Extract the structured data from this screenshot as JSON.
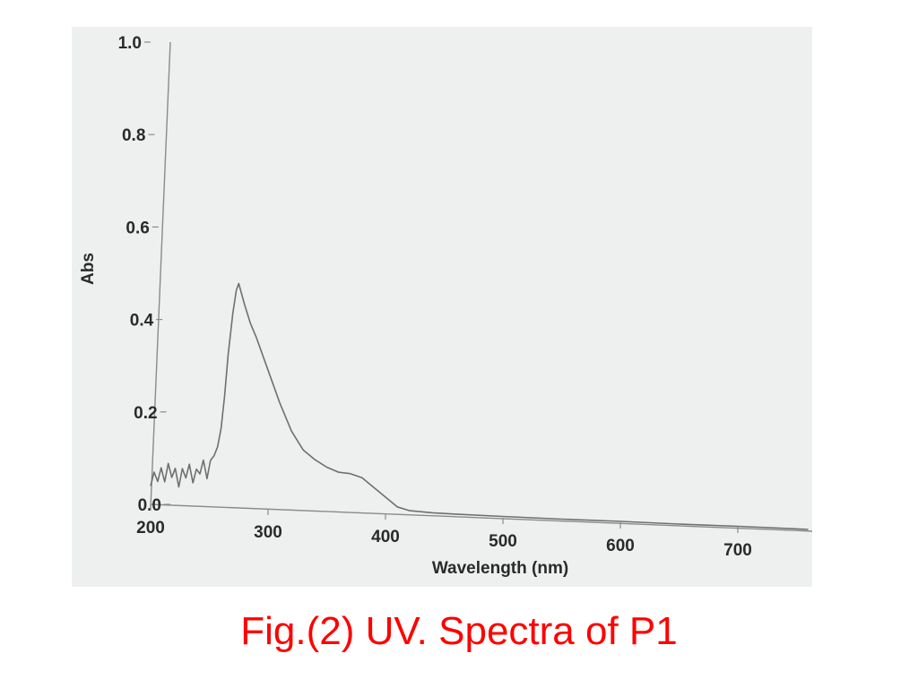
{
  "caption": "Fig.(2) UV. Spectra of P1",
  "colors": {
    "caption": "#ff0000",
    "panel_background": "#eef0ef",
    "trace": "#6f6f6f",
    "axis": "#8a8a8a",
    "text": "#2a2a2a"
  },
  "chart_data": {
    "type": "line",
    "title": "",
    "xlabel": "Wavelength (nm)",
    "ylabel": "Abs",
    "xlim": [
      200,
      760
    ],
    "ylim": [
      0.0,
      1.0
    ],
    "x_ticks": [
      200,
      300,
      400,
      500,
      600,
      700
    ],
    "x_tick_labels": [
      "200",
      "300",
      "400",
      "500",
      "600",
      "700"
    ],
    "y_ticks": [
      0.0,
      0.2,
      0.4,
      0.6,
      0.8,
      1.0
    ],
    "y_tick_labels": [
      "0.0",
      "0.2",
      "0.4",
      "0.6",
      "0.8",
      "1.0"
    ],
    "grid": false,
    "legend": null,
    "series": [
      {
        "name": "P1",
        "x": [
          200,
          203,
          206,
          209,
          212,
          215,
          218,
          221,
          224,
          227,
          230,
          233,
          236,
          239,
          242,
          245,
          248,
          251,
          254,
          257,
          260,
          263,
          266,
          270,
          273,
          275,
          280,
          285,
          290,
          300,
          310,
          320,
          330,
          340,
          350,
          360,
          370,
          380,
          390,
          400,
          410,
          420,
          440,
          460,
          500,
          550,
          600,
          650,
          700,
          760
        ],
        "y": [
          0.04,
          0.07,
          0.05,
          0.08,
          0.05,
          0.09,
          0.06,
          0.08,
          0.04,
          0.08,
          0.06,
          0.09,
          0.05,
          0.08,
          0.07,
          0.1,
          0.06,
          0.1,
          0.11,
          0.13,
          0.17,
          0.24,
          0.33,
          0.42,
          0.47,
          0.485,
          0.44,
          0.4,
          0.37,
          0.3,
          0.23,
          0.17,
          0.13,
          0.11,
          0.095,
          0.085,
          0.083,
          0.075,
          0.055,
          0.035,
          0.015,
          0.008,
          0.005,
          0.004,
          0.003,
          0.002,
          0.002,
          0.001,
          0.001,
          0.0
        ]
      }
    ],
    "annotations": {
      "peak": {
        "x": 275,
        "y": 0.485
      },
      "shoulder": {
        "x": 360,
        "y": 0.085
      }
    }
  }
}
